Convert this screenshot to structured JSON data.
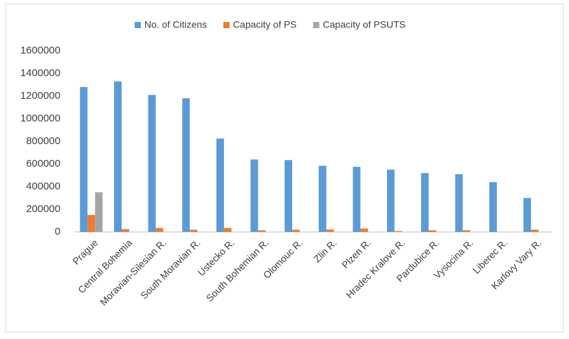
{
  "chart_data": {
    "type": "bar",
    "categories": [
      "Prague",
      "Central Bohemia",
      "Moravian-Silesian R.",
      "South Moravian R.",
      "Ustecko R.",
      "South Bohemian R.",
      "Olomouc R.",
      "Zlin R.",
      "Plzen R.",
      "Hradec Kralove R.",
      "Pardubice R.",
      "Vysocina R.",
      "Liberec R.",
      "Karlovy Vary R."
    ],
    "series": [
      {
        "name": "No. of Citizens",
        "color": "#5b9bd5",
        "values": [
          1280000,
          1330000,
          1210000,
          1180000,
          825000,
          640000,
          635000,
          585000,
          575000,
          550000,
          520000,
          510000,
          440000,
          300000
        ]
      },
      {
        "name": "Capacity of PS",
        "color": "#ed7d31",
        "values": [
          150000,
          25000,
          35000,
          20000,
          35000,
          15000,
          20000,
          22000,
          30000,
          8000,
          15000,
          15000,
          0,
          20000
        ]
      },
      {
        "name": "Capacity of PSUTS",
        "color": "#a5a5a5",
        "values": [
          350000,
          0,
          0,
          0,
          0,
          0,
          0,
          0,
          0,
          0,
          0,
          0,
          0,
          0
        ]
      }
    ],
    "ylim": [
      0,
      1600000
    ],
    "yticks": [
      0,
      200000,
      400000,
      600000,
      800000,
      1000000,
      1200000,
      1400000,
      1600000
    ],
    "grid": false
  }
}
